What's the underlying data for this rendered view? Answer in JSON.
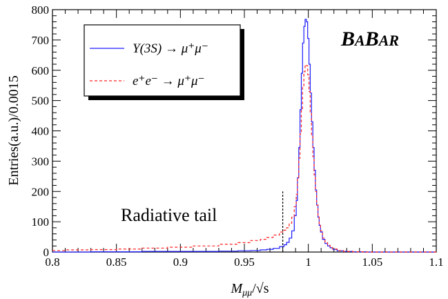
{
  "chart_data": {
    "type": "line",
    "title": "",
    "xlabel_main": "M",
    "xlabel_sub": "μμ",
    "xlabel_tail": "/√s",
    "ylabel": "Entries(a.u.)/0.0015",
    "xlim": [
      0.8,
      1.1
    ],
    "ylim": [
      0,
      800
    ],
    "x_ticks": [
      "0.8",
      "0.85",
      "0.9",
      "0.95",
      "1",
      "1.05",
      "1.1"
    ],
    "y_ticks": [
      "0",
      "100",
      "200",
      "300",
      "400",
      "500",
      "600",
      "700",
      "800"
    ],
    "grid": false,
    "legend_position": "top-left",
    "brand_text": [
      "B",
      "A",
      "B",
      "AR"
    ],
    "annotation": "Radiative tail",
    "cut_line": {
      "x": 0.98,
      "y_top": 200
    },
    "series": [
      {
        "name": "Υ(3S) → μ⁺μ⁻",
        "style": "solid",
        "color": "#1a1aff",
        "x": [
          0.8,
          0.82,
          0.84,
          0.86,
          0.88,
          0.9,
          0.92,
          0.94,
          0.95,
          0.96,
          0.965,
          0.97,
          0.975,
          0.98,
          0.982,
          0.984,
          0.986,
          0.988,
          0.99,
          0.991,
          0.992,
          0.993,
          0.994,
          0.995,
          0.996,
          0.997,
          0.998,
          0.999,
          1.0,
          1.001,
          1.002,
          1.003,
          1.004,
          1.005,
          1.006,
          1.007,
          1.008,
          1.009,
          1.01,
          1.012,
          1.014,
          1.016,
          1.018,
          1.02,
          1.025,
          1.03,
          1.04,
          1.05,
          1.06,
          1.08,
          1.1
        ],
        "y": [
          0,
          0,
          1,
          1,
          2,
          2,
          2,
          3,
          4,
          5,
          7,
          9,
          12,
          18,
          24,
          32,
          46,
          70,
          120,
          170,
          245,
          345,
          470,
          590,
          690,
          745,
          768,
          760,
          705,
          620,
          525,
          430,
          345,
          270,
          205,
          155,
          115,
          88,
          66,
          42,
          28,
          20,
          14,
          9,
          4,
          2,
          1,
          0,
          0,
          0,
          0
        ]
      },
      {
        "name": "e⁺e⁻ → μ⁺μ⁻",
        "style": "dashed",
        "color": "#ff2222",
        "x": [
          0.8,
          0.82,
          0.84,
          0.86,
          0.88,
          0.9,
          0.92,
          0.94,
          0.95,
          0.96,
          0.965,
          0.97,
          0.975,
          0.98,
          0.982,
          0.984,
          0.986,
          0.988,
          0.99,
          0.991,
          0.992,
          0.993,
          0.994,
          0.995,
          0.996,
          0.997,
          0.998,
          0.999,
          1.0,
          1.001,
          1.002,
          1.003,
          1.004,
          1.005,
          1.006,
          1.007,
          1.008,
          1.009,
          1.01,
          1.012,
          1.014,
          1.016,
          1.018,
          1.02,
          1.025,
          1.03,
          1.04,
          1.05,
          1.06,
          1.08,
          1.1
        ],
        "y": [
          5,
          7,
          8,
          10,
          13,
          16,
          20,
          26,
          31,
          38,
          42,
          48,
          56,
          66,
          72,
          80,
          95,
          115,
          150,
          190,
          245,
          310,
          390,
          470,
          545,
          595,
          618,
          615,
          585,
          530,
          460,
          385,
          315,
          255,
          200,
          155,
          120,
          92,
          70,
          46,
          31,
          22,
          15,
          10,
          5,
          2,
          1,
          0,
          0,
          0,
          0
        ]
      }
    ]
  }
}
